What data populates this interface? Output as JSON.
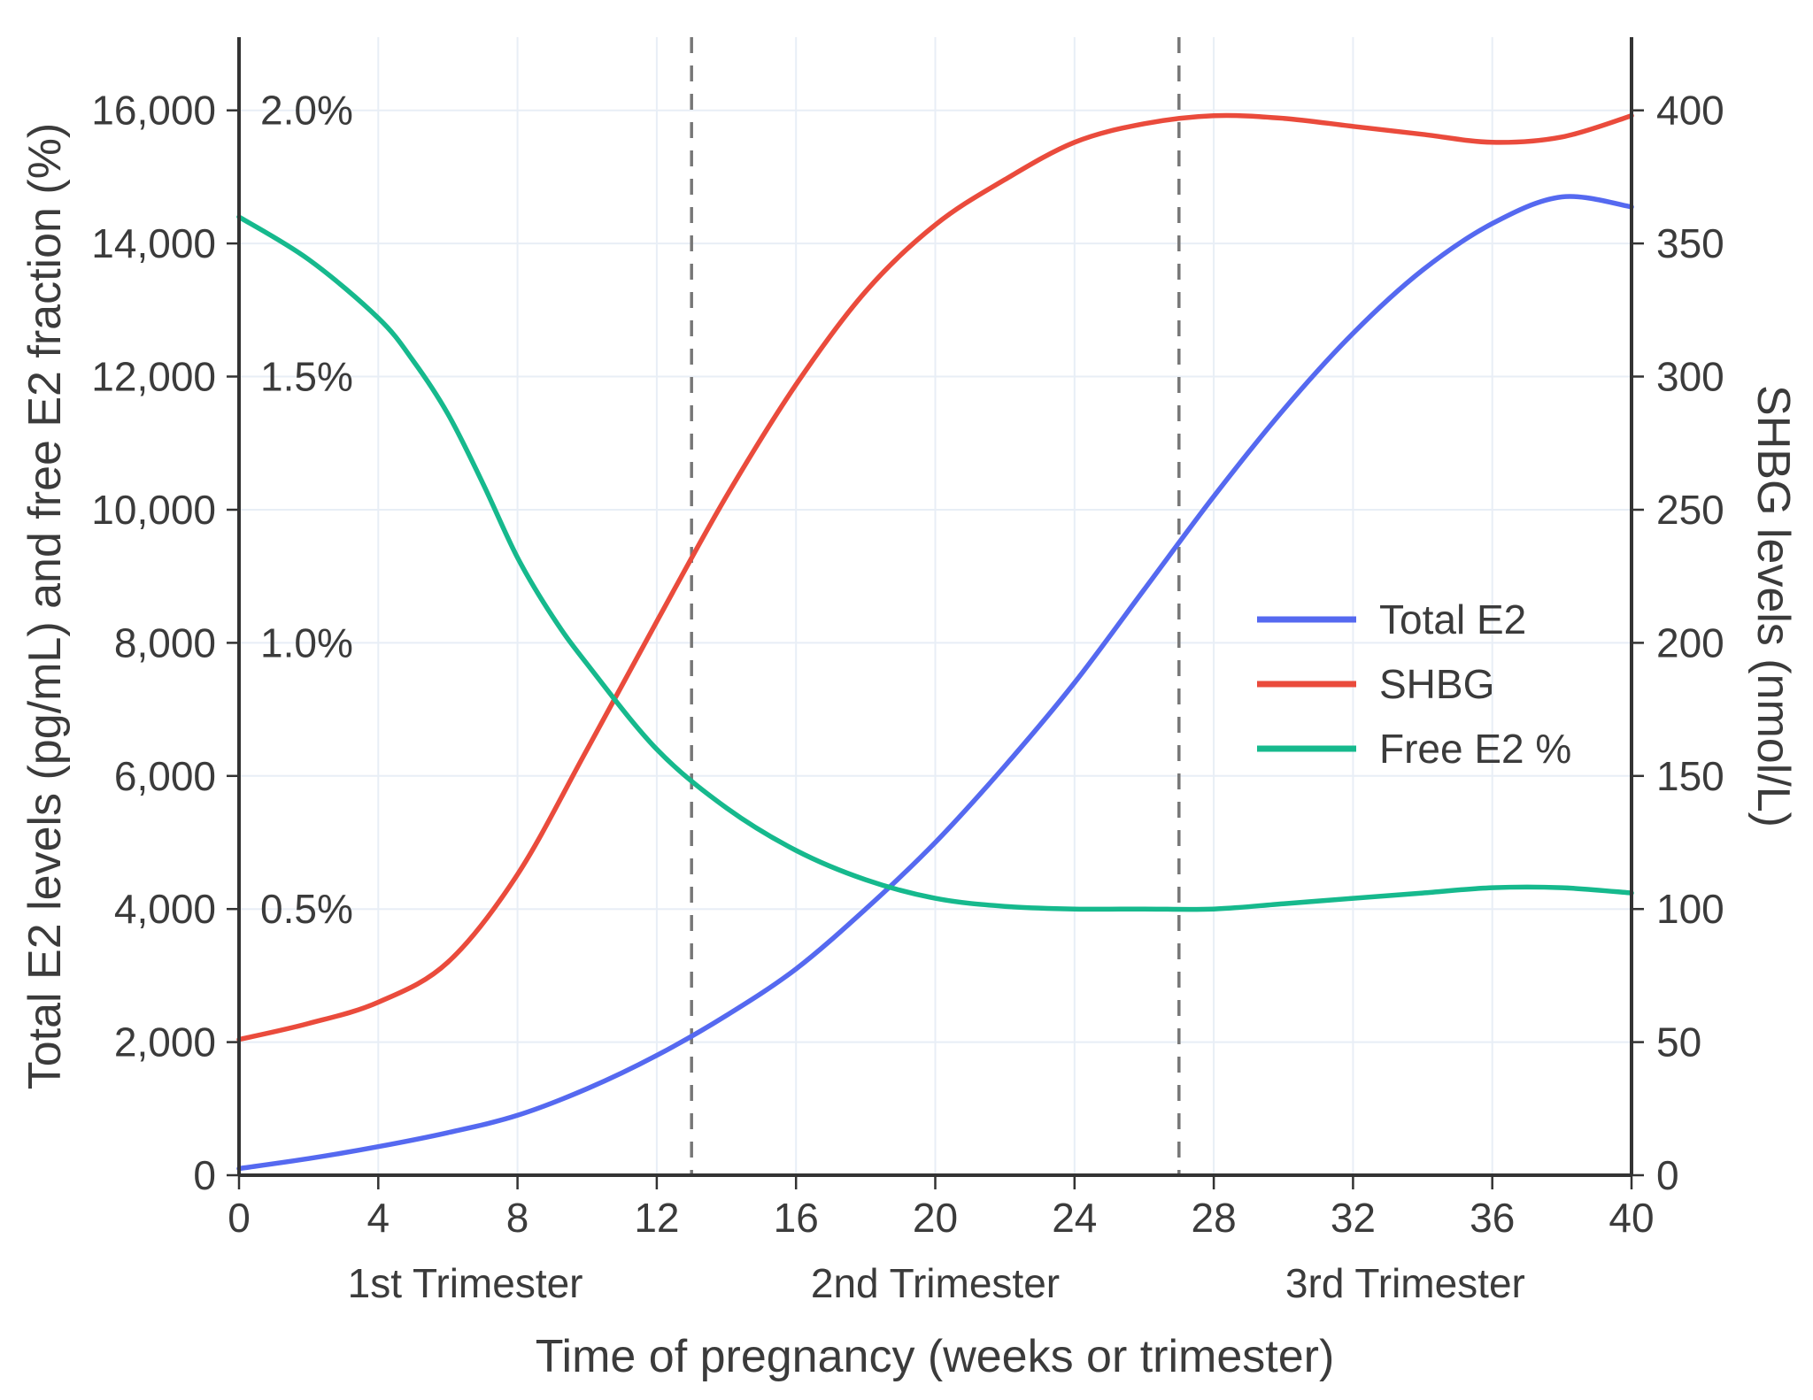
{
  "chart_data": {
    "type": "line",
    "title": "",
    "xlabel": "Time of pregnancy (weeks or trimester)",
    "ylabel_left": "Total E2 levels (pg/mL) and free E2 fraction (%)",
    "ylabel_right": "SHBG levels (nmol/L)",
    "xlim": [
      0,
      40
    ],
    "ylim_left": [
      0,
      17100
    ],
    "ylim_right": [
      0,
      427.5
    ],
    "left_units_per_percent": 8000,
    "grid": true,
    "grid_color": "#e8eef6",
    "axis_color": "#333333",
    "text_color": "#3b3b3b",
    "x_ticks": [
      {
        "v": 0,
        "label": "0"
      },
      {
        "v": 4,
        "label": "4"
      },
      {
        "v": 8,
        "label": "8"
      },
      {
        "v": 12,
        "label": "12"
      },
      {
        "v": 16,
        "label": "16"
      },
      {
        "v": 20,
        "label": "20"
      },
      {
        "v": 24,
        "label": "24"
      },
      {
        "v": 28,
        "label": "28"
      },
      {
        "v": 32,
        "label": "32"
      },
      {
        "v": 36,
        "label": "36"
      },
      {
        "v": 40,
        "label": "40"
      }
    ],
    "y_left_ticks": [
      {
        "v": 0,
        "label": "0"
      },
      {
        "v": 2000,
        "label": "2,000"
      },
      {
        "v": 4000,
        "label": "4,000"
      },
      {
        "v": 6000,
        "label": "6,000"
      },
      {
        "v": 8000,
        "label": "8,000"
      },
      {
        "v": 10000,
        "label": "10,000"
      },
      {
        "v": 12000,
        "label": "12,000"
      },
      {
        "v": 14000,
        "label": "14,000"
      },
      {
        "v": 16000,
        "label": "16,000"
      }
    ],
    "percent_labels": [
      {
        "v": 4000,
        "label": "0.5%"
      },
      {
        "v": 8000,
        "label": "1.0%"
      },
      {
        "v": 12000,
        "label": "1.5%"
      },
      {
        "v": 16000,
        "label": "2.0%"
      }
    ],
    "y_right_ticks": [
      {
        "v": 0,
        "label": "0"
      },
      {
        "v": 50,
        "label": "50"
      },
      {
        "v": 100,
        "label": "100"
      },
      {
        "v": 150,
        "label": "150"
      },
      {
        "v": 200,
        "label": "200"
      },
      {
        "v": 250,
        "label": "250"
      },
      {
        "v": 300,
        "label": "300"
      },
      {
        "v": 350,
        "label": "350"
      },
      {
        "v": 400,
        "label": "400"
      }
    ],
    "vlines": {
      "weeks": [
        13,
        27
      ],
      "color": "#777777",
      "style": "dashed"
    },
    "trimester_labels": [
      {
        "label": "1st Trimester",
        "center_week": 6.5
      },
      {
        "label": "2nd Trimester",
        "center_week": 20
      },
      {
        "label": "3rd Trimester",
        "center_week": 33.5
      }
    ],
    "legend": {
      "position": "inside right",
      "entries": [
        "Total E2",
        "SHBG",
        "Free E2 %"
      ]
    },
    "series": [
      {
        "name": "Total E2",
        "color": "#5569f0",
        "axis": "left",
        "unit": "pg/mL",
        "x": [
          0,
          2,
          4,
          6,
          8,
          10,
          12,
          14,
          16,
          18,
          20,
          22,
          24,
          26,
          28,
          30,
          32,
          34,
          36,
          38,
          40
        ],
        "y": [
          100,
          250,
          430,
          640,
          900,
          1300,
          1800,
          2400,
          3100,
          4000,
          5000,
          6150,
          7400,
          8800,
          10200,
          11500,
          12650,
          13600,
          14300,
          14700,
          14550
        ]
      },
      {
        "name": "SHBG",
        "color": "#ea4b3c",
        "axis": "right",
        "unit": "nmol/L",
        "x": [
          0,
          2,
          4,
          6,
          8,
          10,
          12,
          14,
          16,
          18,
          20,
          22,
          24,
          26,
          28,
          30,
          32,
          34,
          36,
          38,
          40
        ],
        "y": [
          51,
          57,
          65,
          80,
          113,
          160,
          208,
          255,
          297,
          332,
          357,
          374,
          388,
          395,
          398,
          397,
          394,
          391,
          388,
          390,
          398
        ]
      },
      {
        "name": "Free E2 %",
        "color": "#16b98d",
        "axis": "percent",
        "unit": "%",
        "x": [
          0,
          2,
          4,
          5,
          6,
          7,
          8,
          9,
          10,
          12,
          14,
          16,
          18,
          20,
          22,
          24,
          26,
          28,
          30,
          32,
          34,
          36,
          38,
          40
        ],
        "y": [
          1.8,
          1.72,
          1.61,
          1.53,
          1.43,
          1.3,
          1.16,
          1.05,
          0.96,
          0.8,
          0.69,
          0.61,
          0.555,
          0.52,
          0.505,
          0.5,
          0.5,
          0.5,
          0.51,
          0.52,
          0.53,
          0.54,
          0.54,
          0.53
        ]
      }
    ]
  }
}
